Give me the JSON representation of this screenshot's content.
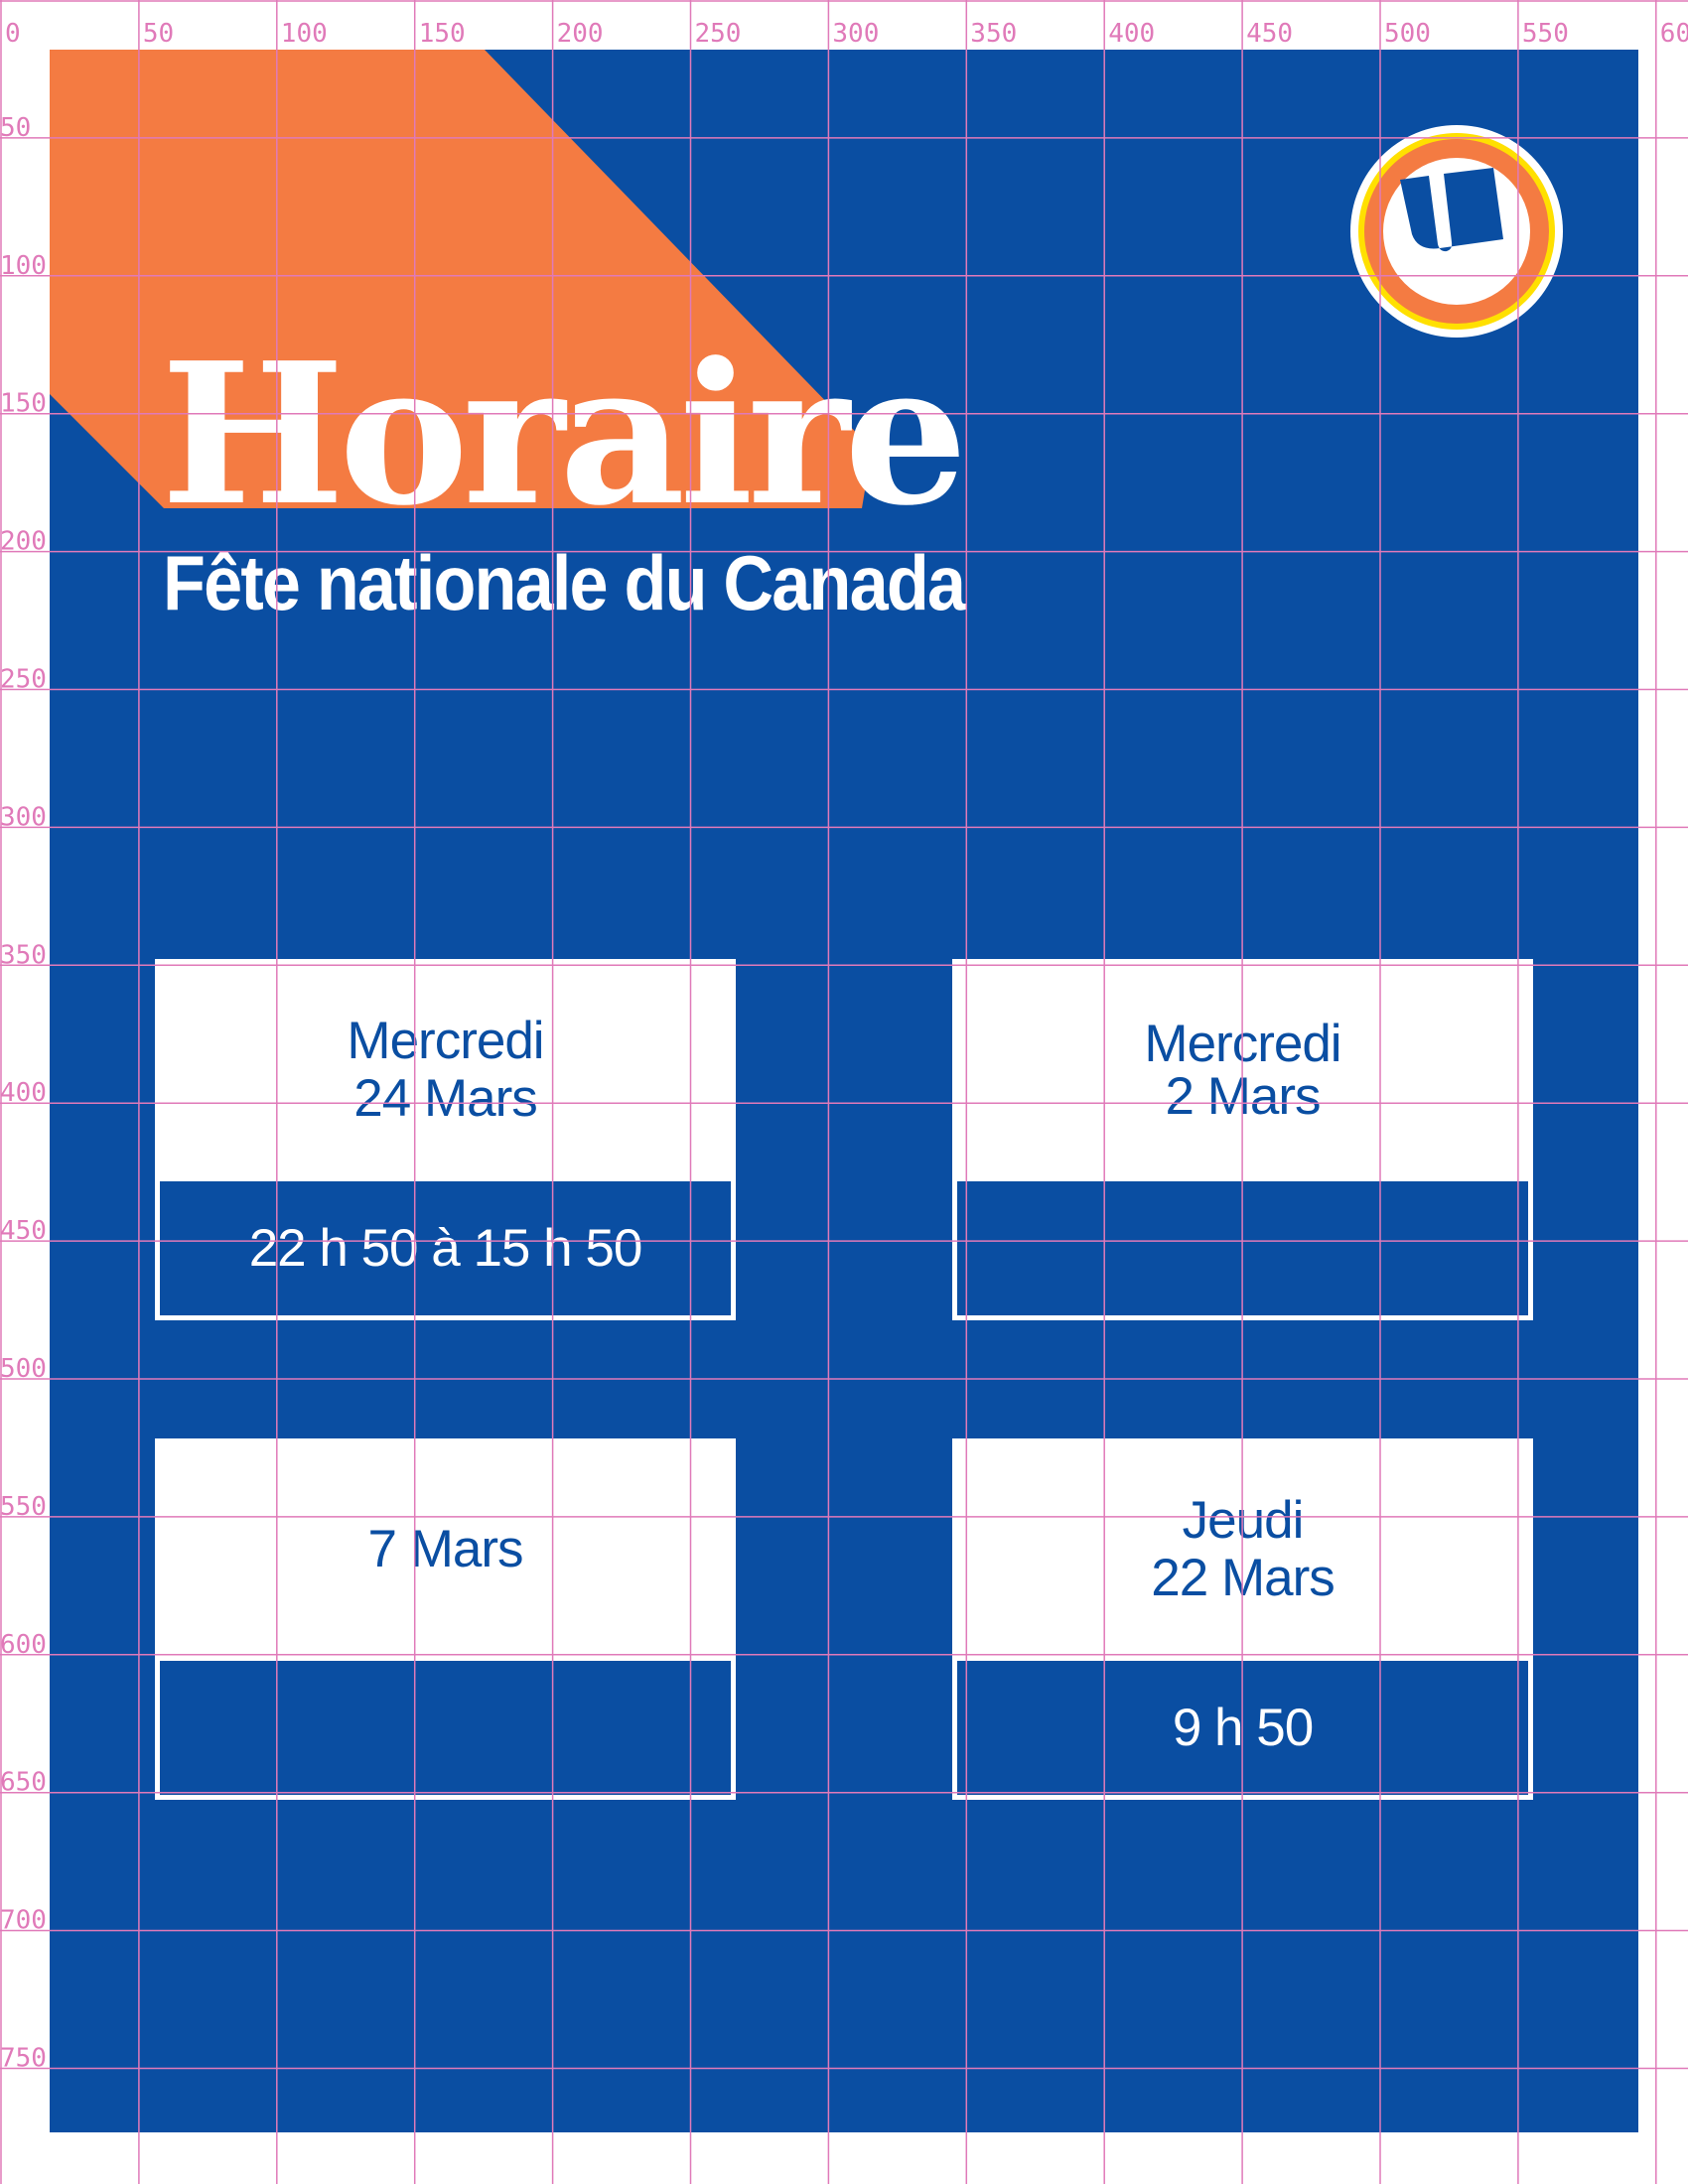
{
  "poster": {
    "title": "Horaire",
    "subtitle": "Fête nationale du Canada",
    "logo_icon": "u-circle-logo",
    "colors": {
      "background": "#0a4ea2",
      "accent": "#f47b42",
      "logo_ring": "#ffe000",
      "text": "#ffffff"
    }
  },
  "cards": [
    {
      "day": "Mercredi",
      "date": "24 Mars",
      "time": "22 h 50 à 15 h 50"
    },
    {
      "day": "Mercredi",
      "date": "2 Mars",
      "time": ""
    },
    {
      "day": "",
      "date": "7 Mars",
      "time": ""
    },
    {
      "day": "Jeudi",
      "date": "22 Mars",
      "time": "9 h 50"
    }
  ],
  "grid": {
    "x_labels": [
      "0",
      "50",
      "100",
      "150",
      "200",
      "250",
      "300",
      "350",
      "400",
      "450",
      "500",
      "550",
      "60"
    ],
    "y_labels": [
      "50",
      "100",
      "150",
      "200",
      "250",
      "300",
      "350",
      "400",
      "450",
      "500",
      "550",
      "600",
      "650",
      "700",
      "750"
    ]
  }
}
